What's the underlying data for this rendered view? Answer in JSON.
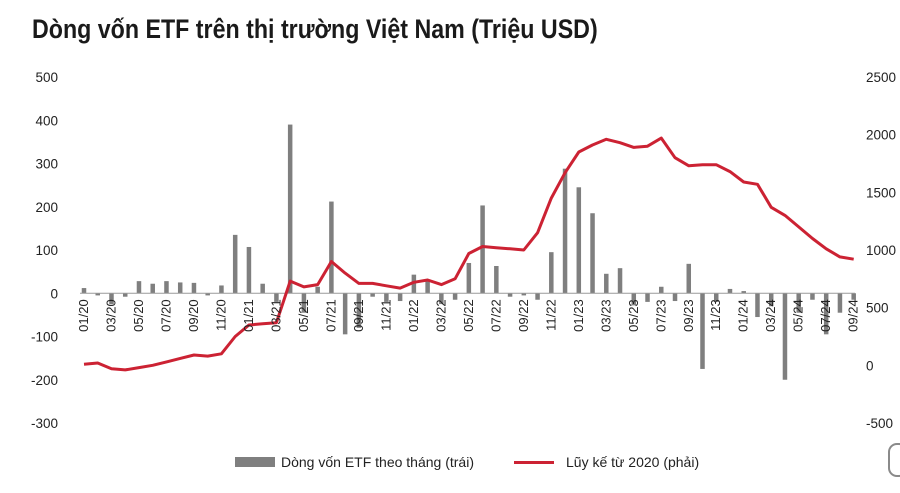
{
  "title": "Dòng vốn ETF trên thị trường Việt Nam (Triệu USD)",
  "legend": {
    "bar_label": "Dòng vốn ETF theo tháng (trái)",
    "line_label": "Lũy kế từ 2020 (phải)"
  },
  "colors": {
    "bar": "#7f7f7f",
    "line": "#cc2233"
  },
  "chart_data": {
    "type": "bar",
    "title": "Dòng vốn ETF trên thị trường Việt Nam (Triệu USD)",
    "xlabel": "",
    "ylabel": "",
    "y_left": {
      "range": [
        -300,
        500
      ],
      "ticks": [
        500,
        400,
        300,
        200,
        100,
        0,
        -100,
        -200,
        -300
      ]
    },
    "y_right": {
      "range": [
        -500,
        2500
      ],
      "ticks": [
        2500,
        2000,
        1500,
        1000,
        500,
        0,
        -500
      ]
    },
    "categories": [
      "01/20",
      "02/20",
      "03/20",
      "04/20",
      "05/20",
      "06/20",
      "07/20",
      "08/20",
      "09/20",
      "10/20",
      "11/20",
      "12/20",
      "01/21",
      "02/21",
      "03/21",
      "04/21",
      "05/21",
      "06/21",
      "07/21",
      "08/21",
      "09/21",
      "10/21",
      "11/21",
      "12/21",
      "01/22",
      "02/22",
      "03/22",
      "04/22",
      "05/22",
      "06/22",
      "07/22",
      "08/22",
      "09/22",
      "10/22",
      "11/22",
      "12/22",
      "01/23",
      "02/23",
      "03/23",
      "04/23",
      "05/23",
      "06/23",
      "07/23",
      "08/23",
      "09/23",
      "10/23",
      "11/23",
      "12/23",
      "01/24",
      "02/24",
      "03/24",
      "04/24",
      "05/24",
      "06/24",
      "07/24",
      "08/24",
      "09/24"
    ],
    "x_tick_labels": [
      "01/20",
      "03/20",
      "05/20",
      "07/20",
      "09/20",
      "11/20",
      "01/21",
      "03/21",
      "05/21",
      "07/21",
      "09/21",
      "11/21",
      "01/22",
      "03/22",
      "05/22",
      "07/22",
      "09/22",
      "11/22",
      "01/23",
      "03/23",
      "05/23",
      "07/23",
      "09/23",
      "11/23",
      "01/24",
      "03/24",
      "05/24",
      "07/24",
      "09/24"
    ],
    "series": [
      {
        "name": "Dòng vốn ETF theo tháng (trái)",
        "type": "bar",
        "axis": "left",
        "values": [
          12,
          -5,
          -25,
          -8,
          28,
          22,
          28,
          25,
          24,
          -5,
          18,
          135,
          107,
          22,
          -20,
          390,
          -45,
          15,
          212,
          -95,
          -80,
          -8,
          -20,
          -18,
          43,
          28,
          -25,
          -15,
          70,
          203,
          63,
          -8,
          -5,
          -15,
          95,
          288,
          245,
          185,
          45,
          58,
          -28,
          -20,
          15,
          -18,
          68,
          -175,
          -20,
          10,
          5,
          -55,
          -30,
          -200,
          -45,
          -15,
          -95,
          -45,
          -15
        ]
      },
      {
        "name": "Lũy kế từ 2020 (phải)",
        "type": "line",
        "axis": "right",
        "values": [
          10,
          20,
          -30,
          -40,
          -20,
          0,
          30,
          60,
          90,
          80,
          100,
          250,
          350,
          360,
          370,
          730,
          680,
          700,
          900,
          800,
          710,
          710,
          690,
          670,
          720,
          740,
          700,
          750,
          970,
          1030,
          1020,
          1010,
          1000,
          1150,
          1450,
          1670,
          1850,
          1910,
          1960,
          1930,
          1890,
          1900,
          1970,
          1800,
          1730,
          1740,
          1740,
          1680,
          1590,
          1570,
          1370,
          1300,
          1200,
          1100,
          1010,
          940,
          920
        ]
      }
    ],
    "grid": false,
    "legend_position": "bottom"
  }
}
